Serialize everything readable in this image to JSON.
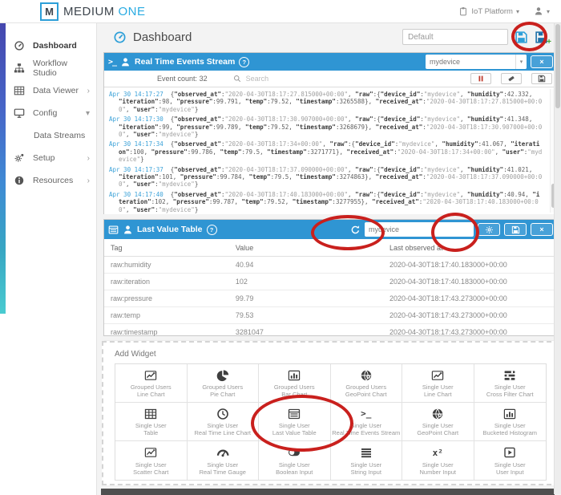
{
  "brand": {
    "logo_letter": "M",
    "name_primary": "MEDIUM",
    "name_secondary": "ONE"
  },
  "topbar": {
    "workspace_label": "IoT Platform"
  },
  "title_row": {
    "title": "Dashboard",
    "dashboard_name_value": "Default"
  },
  "sidebar": {
    "items": [
      {
        "label": "Dashboard",
        "icon": "gauge",
        "active": true
      },
      {
        "label": "Workflow Studio",
        "icon": "sitemap"
      },
      {
        "label": "Data Viewer",
        "icon": "table",
        "chevron": "right"
      },
      {
        "label": "Config",
        "icon": "desktop",
        "chevron": "down"
      },
      {
        "label": "Data Streams",
        "child": true
      },
      {
        "label": "Setup",
        "icon": "gears",
        "chevron": "right"
      },
      {
        "label": "Resources",
        "icon": "info",
        "chevron": "right"
      }
    ]
  },
  "stream": {
    "title": "Real Time Events Stream",
    "device_filter_value": "mydevice",
    "event_count_label": "Event count:",
    "event_count": "32",
    "search_placeholder": "Search",
    "entries": [
      {
        "time": "Apr 30 14:17:27",
        "observed_at": "2020-04-30T18:17:27.815000+00:00",
        "device_id": "mydevice",
        "humidity": "42.332",
        "iteration": "98",
        "pressure": "99.791",
        "temp": "79.52",
        "timestamp": "3265588",
        "received_at": "2020-04-30T18:17:27.815000+00:00",
        "user": "mydevice"
      },
      {
        "time": "Apr 30 14:17:30",
        "observed_at": "2020-04-30T18:17:30.907000+00:00",
        "device_id": "mydevice",
        "humidity": "41.348",
        "iteration": "99",
        "pressure": "99.789",
        "temp": "79.52",
        "timestamp": "3268679",
        "received_at": "2020-04-30T18:17:30.907000+00:00",
        "user": "mydevice"
      },
      {
        "time": "Apr 30 14:17:34",
        "observed_at": "2020-04-30T18:17:34+00:00",
        "device_id": "mydevice",
        "humidity": "41.067",
        "iteration": "100",
        "pressure": "99.786",
        "temp": "79.5",
        "timestamp": "3271771",
        "received_at": "2020-04-30T18:17:34+00:00",
        "user": "mydevice"
      },
      {
        "time": "Apr 30 14:17:37",
        "observed_at": "2020-04-30T18:17:37.090000+00:00",
        "device_id": "mydevice",
        "humidity": "41.021",
        "iteration": "101",
        "pressure": "99.784",
        "temp": "79.5",
        "timestamp": "3274863",
        "received_at": "2020-04-30T18:17:37.090000+00:00",
        "user": "mydevice"
      },
      {
        "time": "Apr 30 14:17:40",
        "observed_at": "2020-04-30T18:17:40.183000+00:00",
        "device_id": "mydevice",
        "humidity": "40.94",
        "iteration": "102",
        "pressure": "99.787",
        "temp": "79.52",
        "timestamp": "3277955",
        "received_at": "2020-04-30T18:17:40.183000+00:00",
        "user": "mydevice"
      }
    ]
  },
  "lvt": {
    "title": "Last Value Table",
    "device_filter_value": "mydevice",
    "columns": [
      "Tag",
      "Value",
      "Last observed at"
    ],
    "rows": [
      [
        "raw:humidity",
        "40.94",
        "2020-04-30T18:17:40.183000+00:00"
      ],
      [
        "raw:iteration",
        "102",
        "2020-04-30T18:17:40.183000+00:00"
      ],
      [
        "raw:pressure",
        "99.79",
        "2020-04-30T18:17:43.273000+00:00"
      ],
      [
        "raw:temp",
        "79.53",
        "2020-04-30T18:17:43.273000+00:00"
      ],
      [
        "raw:timestamp",
        "3281047",
        "2020-04-30T18:17:43.273000+00:00"
      ]
    ]
  },
  "add_widget": {
    "title": "Add Widget",
    "items": [
      {
        "line1": "Grouped Users",
        "line2": "Line Chart",
        "icon": "line-chart"
      },
      {
        "line1": "Grouped Users",
        "line2": "Pie Chart",
        "icon": "pie-chart"
      },
      {
        "line1": "Grouped Users",
        "line2": "Bar Chart",
        "icon": "bar-chart"
      },
      {
        "line1": "Grouped Users",
        "line2": "GeoPoint Chart",
        "icon": "geopoint"
      },
      {
        "line1": "Single User",
        "line2": "Line Chart",
        "icon": "line-chart"
      },
      {
        "line1": "Single User",
        "line2": "Cross Filter Chart",
        "icon": "cross-filter"
      },
      {
        "line1": "Single User",
        "line2": "Table",
        "icon": "grid-table"
      },
      {
        "line1": "Single User",
        "line2": "Real Time Line Chart",
        "icon": "clock"
      },
      {
        "line1": "Single User",
        "line2": "Last Value Table",
        "icon": "list-alt",
        "circled": true
      },
      {
        "line1": "Single User",
        "line2": "Real Time Events Stream",
        "icon": "terminal"
      },
      {
        "line1": "Single User",
        "line2": "GeoPoint Chart",
        "icon": "geopoint"
      },
      {
        "line1": "Single User",
        "line2": "Bucketed Histogram",
        "icon": "bar-chart"
      },
      {
        "line1": "Single User",
        "line2": "Scatter Chart",
        "icon": "scatter"
      },
      {
        "line1": "Single User",
        "line2": "Real Time Gauge",
        "icon": "speed-gauge"
      },
      {
        "line1": "Single User",
        "line2": "Boolean Input",
        "icon": "toggle"
      },
      {
        "line1": "Single User",
        "line2": "String Input",
        "icon": "lines"
      },
      {
        "line1": "Single User",
        "line2": "Number Input",
        "icon": "x-squared"
      },
      {
        "line1": "Single User",
        "line2": "User Input",
        "icon": "play-box"
      }
    ]
  },
  "glyphs": {
    "help": "?",
    "close": "×",
    "caret_down": "▾",
    "chevron_right": "›",
    "terminal": ">_"
  },
  "colors": {
    "accent_blue": "#2f95d3",
    "brand_blue": "#29abe2",
    "annotation_red": "#c9201d",
    "pause_red": "#c0392b"
  }
}
